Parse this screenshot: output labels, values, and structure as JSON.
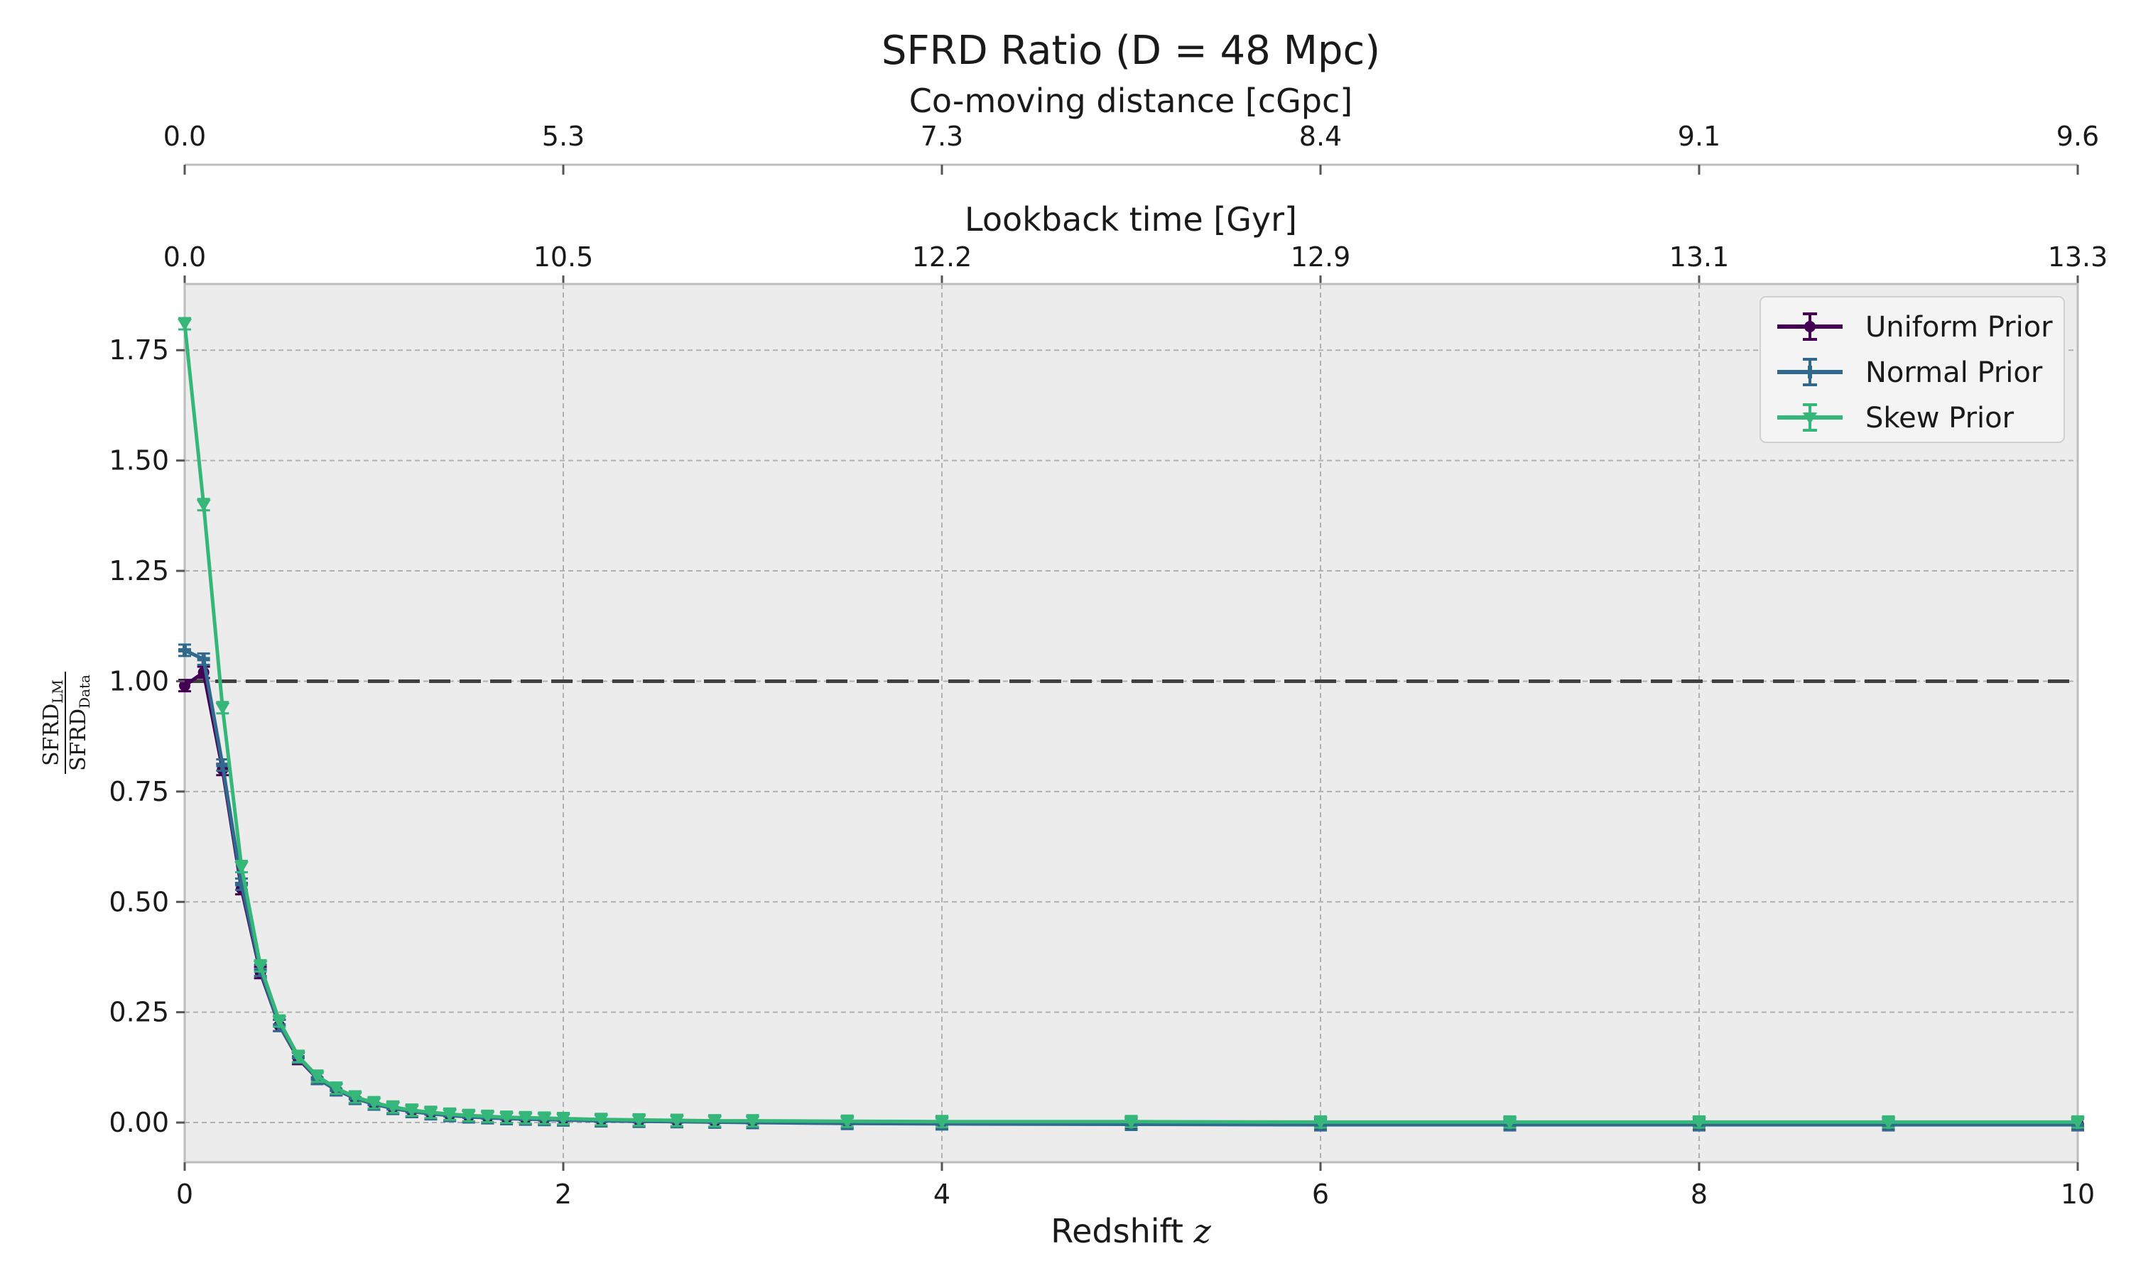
{
  "chart_data": {
    "type": "line",
    "title": "SFRD Ratio (D = 48 Mpc)",
    "xlabel": "Redshift",
    "xlabel_var": "z",
    "ylabel": {
      "numerator": "SFRD",
      "numerator_sub": "LM",
      "denominator": "SFRD",
      "denominator_sub": "Data"
    },
    "xlim": [
      0,
      10
    ],
    "ylim": [
      -0.09,
      1.9
    ],
    "x_ticks": [
      "0",
      "2",
      "4",
      "6",
      "8",
      "10"
    ],
    "y_ticks": [
      "0.00",
      "0.25",
      "0.50",
      "0.75",
      "1.00",
      "1.25",
      "1.50",
      "1.75"
    ],
    "grid": true,
    "legend_position": "top-right",
    "reference_line": {
      "y": 1.0,
      "style": "dashed",
      "color": "#404040"
    },
    "top_axes": [
      {
        "label": "Co-moving distance [cGpc]",
        "tick_labels": [
          "0.0",
          "5.3",
          "7.3",
          "8.4",
          "9.1",
          "9.6"
        ]
      },
      {
        "label": "Lookback time [Gyr]",
        "tick_labels": [
          "0.0",
          "10.5",
          "12.2",
          "12.9",
          "13.1",
          "13.3"
        ]
      }
    ],
    "x": [
      0,
      0.1,
      0.2,
      0.3,
      0.4,
      0.5,
      0.6,
      0.7,
      0.8,
      0.9,
      1.0,
      1.1,
      1.2,
      1.3,
      1.4,
      1.5,
      1.6,
      1.7,
      1.8,
      1.9,
      2.0,
      2.2,
      2.4,
      2.6,
      2.8,
      3.0,
      3.5,
      4.0,
      5.0,
      6.0,
      7.0,
      8.0,
      9.0,
      10.0
    ],
    "series": [
      {
        "name": "Uniform Prior",
        "color": "#440154",
        "marker": "circle",
        "values": [
          0.99,
          1.02,
          0.8,
          0.53,
          0.34,
          0.22,
          0.145,
          0.1,
          0.075,
          0.055,
          0.042,
          0.033,
          0.026,
          0.021,
          0.017,
          0.014,
          0.012,
          0.01,
          0.009,
          0.008,
          0.007,
          0.005,
          0.004,
          0.003,
          0.002,
          0.002,
          0.001,
          0.001,
          0.0,
          0.0,
          0.0,
          0.0,
          0.0,
          0.0
        ]
      },
      {
        "name": "Normal Prior",
        "color": "#31688e",
        "marker": "plus",
        "values": [
          1.07,
          1.05,
          0.81,
          0.54,
          0.345,
          0.22,
          0.148,
          0.1,
          0.074,
          0.055,
          0.042,
          0.032,
          0.025,
          0.02,
          0.016,
          0.013,
          0.011,
          0.009,
          0.008,
          0.007,
          0.006,
          0.004,
          0.003,
          0.002,
          0.001,
          0.0,
          -0.002,
          -0.003,
          -0.004,
          -0.005,
          -0.005,
          -0.005,
          -0.005,
          -0.005
        ]
      },
      {
        "name": "Skew Prior",
        "color": "#35b779",
        "marker": "triangle-down",
        "values": [
          1.81,
          1.4,
          0.94,
          0.58,
          0.355,
          0.23,
          0.15,
          0.105,
          0.078,
          0.058,
          0.045,
          0.035,
          0.028,
          0.023,
          0.019,
          0.016,
          0.014,
          0.012,
          0.011,
          0.01,
          0.009,
          0.007,
          0.006,
          0.005,
          0.004,
          0.004,
          0.003,
          0.002,
          0.002,
          0.001,
          0.001,
          0.001,
          0.001,
          0.001
        ]
      }
    ]
  }
}
